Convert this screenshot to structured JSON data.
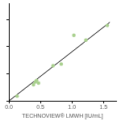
{
  "chart_data": {
    "type": "scatter",
    "x_label": "TECHNOVIEW® LMWH [IU/mL]",
    "series": [
      {
        "type": "scatter",
        "color": "#a9d08e",
        "marker": "circle",
        "x": [
          0.13,
          0.39,
          0.42,
          0.44,
          0.47,
          0.7,
          0.83,
          1.03,
          1.22,
          1.56
        ],
        "values": [
          0.09,
          0.3,
          0.35,
          0.38,
          0.33,
          0.65,
          0.68,
          1.21,
          1.12,
          1.39
        ]
      },
      {
        "type": "line",
        "color": "#000000",
        "line_style": "solid",
        "x": [
          0,
          1.6
        ],
        "values": [
          0,
          1.45
        ]
      }
    ],
    "xlim": [
      0,
      1.7
    ],
    "xticks": [
      {
        "value": 0,
        "label": "0.0"
      },
      0.5,
      {
        "value": 1,
        "label": "1.0"
      },
      1.5
    ],
    "ylim": [
      0,
      1.8
    ],
    "yticks": [
      0,
      0.5,
      1,
      1.5
    ],
    "tick_labels": "x",
    "grid": false
  }
}
